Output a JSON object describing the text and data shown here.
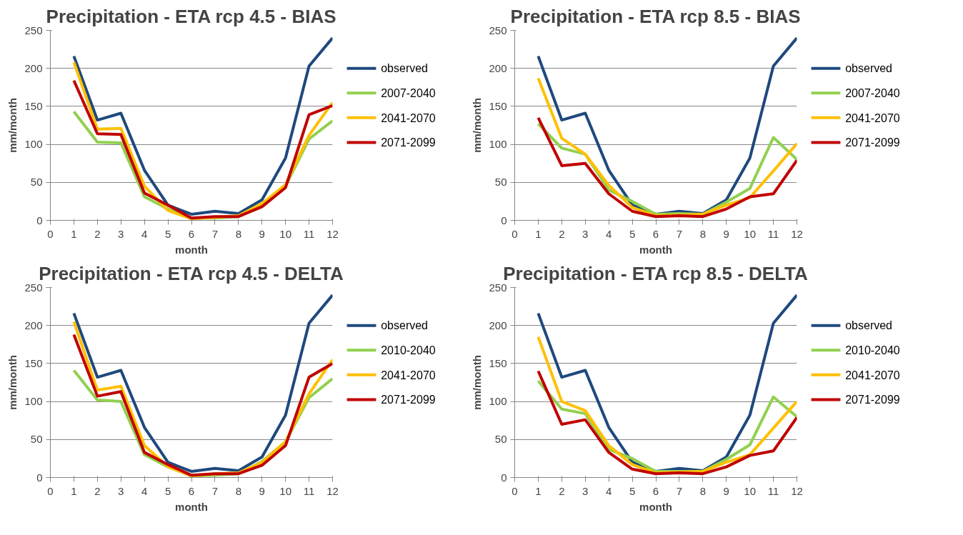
{
  "chart_data": [
    {
      "type": "line",
      "title": "Precipitation - ETA rcp 4.5 - BIAS",
      "xlabel": "month",
      "ylabel": "mm/month",
      "x": [
        1,
        2,
        3,
        4,
        5,
        6,
        7,
        8,
        9,
        10,
        11,
        12
      ],
      "xlim": [
        0,
        12
      ],
      "xticks": [
        0,
        1,
        2,
        3,
        4,
        5,
        6,
        7,
        8,
        9,
        10,
        11,
        12
      ],
      "ylim": [
        0,
        250
      ],
      "yticks": [
        0,
        50,
        100,
        150,
        200,
        250
      ],
      "grid": "y",
      "legend": "right",
      "marker": "none",
      "line_style": "solid",
      "series": [
        {
          "name": "observed",
          "color": "#1f497d",
          "values": [
            216,
            132,
            141,
            66,
            20,
            8,
            12,
            9,
            27,
            82,
            203,
            240
          ]
        },
        {
          "name": "2007-2040",
          "color": "#92d050",
          "values": [
            143,
            103,
            102,
            31,
            15,
            3,
            3,
            5,
            21,
            45,
            107,
            131
          ]
        },
        {
          "name": "2041-2070",
          "color": "#ffc000",
          "values": [
            208,
            120,
            121,
            45,
            13,
            2,
            4,
            6,
            22,
            47,
            112,
            155
          ]
        },
        {
          "name": "2071-2099",
          "color": "#c00000",
          "values": [
            184,
            114,
            113,
            36,
            20,
            3,
            5,
            5,
            18,
            43,
            139,
            151
          ]
        }
      ]
    },
    {
      "type": "line",
      "title": "Precipitation - ETA rcp 8.5 - BIAS",
      "xlabel": "month",
      "ylabel": "mm/month",
      "x": [
        1,
        2,
        3,
        4,
        5,
        6,
        7,
        8,
        9,
        10,
        11,
        12
      ],
      "xlim": [
        0,
        12
      ],
      "xticks": [
        0,
        1,
        2,
        3,
        4,
        5,
        6,
        7,
        8,
        9,
        10,
        11,
        12
      ],
      "ylim": [
        0,
        250
      ],
      "yticks": [
        0,
        50,
        100,
        150,
        200,
        250
      ],
      "grid": "y",
      "legend": "right",
      "marker": "none",
      "line_style": "solid",
      "series": [
        {
          "name": "observed",
          "color": "#1f497d",
          "values": [
            216,
            132,
            141,
            66,
            20,
            8,
            12,
            9,
            27,
            82,
            203,
            240
          ]
        },
        {
          "name": "2007-2040",
          "color": "#92d050",
          "values": [
            127,
            95,
            87,
            40,
            25,
            8,
            9,
            8,
            24,
            42,
            109,
            80
          ]
        },
        {
          "name": "2041-2070",
          "color": "#ffc000",
          "values": [
            187,
            108,
            87,
            46,
            17,
            6,
            7,
            8,
            20,
            30,
            65,
            101
          ]
        },
        {
          "name": "2071-2099",
          "color": "#c00000",
          "values": [
            135,
            72,
            75,
            35,
            12,
            5,
            6,
            5,
            15,
            31,
            35,
            79
          ]
        }
      ]
    },
    {
      "type": "line",
      "title": "Precipitation - ETA rcp 4.5 - DELTA",
      "xlabel": "month",
      "ylabel": "mm/month",
      "x": [
        1,
        2,
        3,
        4,
        5,
        6,
        7,
        8,
        9,
        10,
        11,
        12
      ],
      "xlim": [
        0,
        12
      ],
      "xticks": [
        0,
        1,
        2,
        3,
        4,
        5,
        6,
        7,
        8,
        9,
        10,
        11,
        12
      ],
      "ylim": [
        0,
        250
      ],
      "yticks": [
        0,
        50,
        100,
        150,
        200,
        250
      ],
      "grid": "y",
      "legend": "right",
      "marker": "none",
      "line_style": "solid",
      "series": [
        {
          "name": "observed",
          "color": "#1f497d",
          "values": [
            216,
            132,
            141,
            66,
            20,
            8,
            12,
            9,
            27,
            82,
            203,
            240
          ]
        },
        {
          "name": "2010-2040",
          "color": "#92d050",
          "values": [
            141,
            102,
            100,
            30,
            14,
            2,
            3,
            5,
            21,
            47,
            105,
            130
          ]
        },
        {
          "name": "2041-2070",
          "color": "#ffc000",
          "values": [
            205,
            115,
            120,
            42,
            14,
            2,
            5,
            6,
            20,
            47,
            110,
            155
          ]
        },
        {
          "name": "2071-2099",
          "color": "#c00000",
          "values": [
            188,
            107,
            113,
            33,
            17,
            3,
            5,
            5,
            16,
            42,
            132,
            150
          ]
        }
      ]
    },
    {
      "type": "line",
      "title": "Precipitation - ETA rcp 8.5 - DELTA",
      "xlabel": "month",
      "ylabel": "mm/month",
      "x": [
        1,
        2,
        3,
        4,
        5,
        6,
        7,
        8,
        9,
        10,
        11,
        12
      ],
      "xlim": [
        0,
        12
      ],
      "xticks": [
        0,
        1,
        2,
        3,
        4,
        5,
        6,
        7,
        8,
        9,
        10,
        11,
        12
      ],
      "ylim": [
        0,
        250
      ],
      "yticks": [
        0,
        50,
        100,
        150,
        200,
        250
      ],
      "grid": "y",
      "legend": "right",
      "marker": "none",
      "line_style": "solid",
      "series": [
        {
          "name": "observed",
          "color": "#1f497d",
          "values": [
            216,
            132,
            141,
            66,
            20,
            8,
            12,
            9,
            27,
            82,
            203,
            240
          ]
        },
        {
          "name": "2010-2040",
          "color": "#92d050",
          "values": [
            127,
            90,
            84,
            37,
            25,
            8,
            8,
            8,
            24,
            43,
            106,
            80
          ]
        },
        {
          "name": "2041-2070",
          "color": "#ffc000",
          "values": [
            185,
            100,
            88,
            42,
            17,
            6,
            7,
            8,
            20,
            30,
            65,
            100
          ]
        },
        {
          "name": "2071-2099",
          "color": "#c00000",
          "values": [
            140,
            70,
            76,
            33,
            11,
            5,
            6,
            5,
            14,
            29,
            35,
            79
          ]
        }
      ]
    }
  ]
}
